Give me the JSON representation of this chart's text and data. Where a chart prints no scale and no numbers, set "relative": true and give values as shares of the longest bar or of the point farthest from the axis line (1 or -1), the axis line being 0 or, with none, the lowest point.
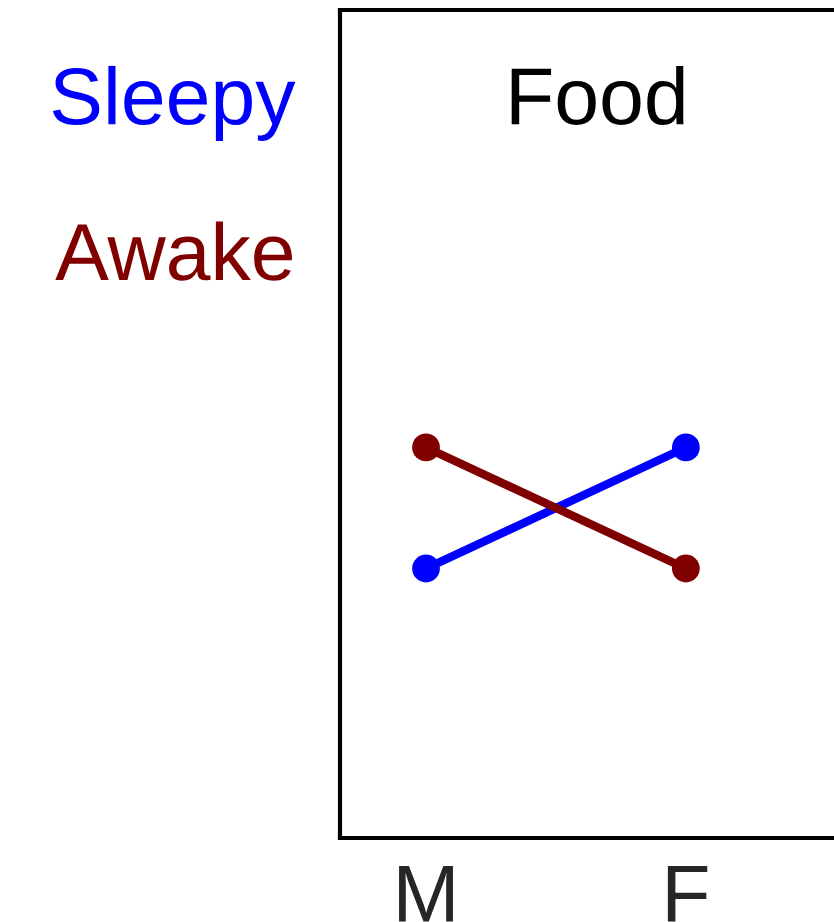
{
  "chart_data": {
    "type": "line",
    "title": "Food",
    "categories": [
      "M",
      "F"
    ],
    "relative": true,
    "series": [
      {
        "name": "Sleepy",
        "color": "#0000ff",
        "values": [
          0.69,
          1
        ]
      },
      {
        "name": "Awake",
        "color": "#800000",
        "values": [
          1,
          0.69
        ]
      }
    ],
    "marker": "circle",
    "line_style": "solid",
    "legend": "top left"
  }
}
